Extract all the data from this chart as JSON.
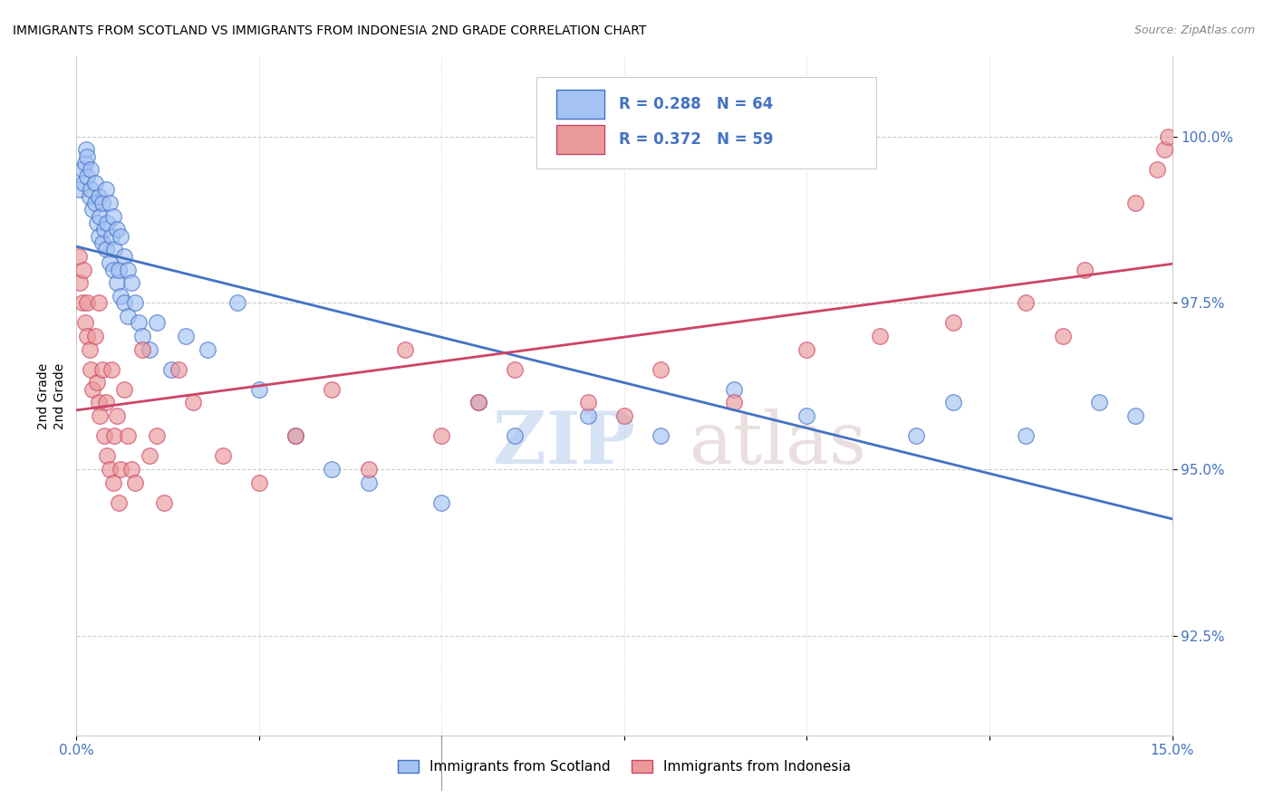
{
  "title": "IMMIGRANTS FROM SCOTLAND VS IMMIGRANTS FROM INDONESIA 2ND GRADE CORRELATION CHART",
  "source": "Source: ZipAtlas.com",
  "ylabel": "2nd Grade",
  "ytick_vals": [
    92.5,
    95.0,
    97.5,
    100.0
  ],
  "xlim": [
    0.0,
    15.0
  ],
  "ylim": [
    91.0,
    101.2
  ],
  "legend_r_scotland": "R = 0.288",
  "legend_n_scotland": "N = 64",
  "legend_r_indonesia": "R = 0.372",
  "legend_n_indonesia": "N = 59",
  "color_scotland": "#a4c2f4",
  "color_indonesia": "#ea9999",
  "color_trendline_scotland": "#4472c4",
  "color_trendline_indonesia": "#cc4466",
  "watermark_zip": "ZIP",
  "watermark_atlas": "atlas",
  "scotland_x": [
    0.05,
    0.08,
    0.1,
    0.12,
    0.13,
    0.15,
    0.15,
    0.18,
    0.2,
    0.2,
    0.22,
    0.25,
    0.25,
    0.28,
    0.3,
    0.3,
    0.32,
    0.35,
    0.35,
    0.38,
    0.4,
    0.4,
    0.42,
    0.45,
    0.45,
    0.48,
    0.5,
    0.5,
    0.52,
    0.55,
    0.55,
    0.58,
    0.6,
    0.6,
    0.65,
    0.65,
    0.7,
    0.7,
    0.75,
    0.8,
    0.85,
    0.9,
    1.0,
    1.1,
    1.3,
    1.5,
    1.8,
    2.2,
    2.5,
    3.0,
    3.5,
    4.0,
    5.0,
    5.5,
    6.0,
    7.0,
    8.0,
    9.0,
    10.0,
    11.5,
    12.0,
    13.0,
    14.0,
    14.5
  ],
  "scotland_y": [
    99.2,
    99.5,
    99.3,
    99.6,
    99.8,
    99.4,
    99.7,
    99.1,
    99.5,
    99.2,
    98.9,
    99.3,
    99.0,
    98.7,
    99.1,
    98.5,
    98.8,
    99.0,
    98.4,
    98.6,
    99.2,
    98.3,
    98.7,
    99.0,
    98.1,
    98.5,
    98.8,
    98.0,
    98.3,
    98.6,
    97.8,
    98.0,
    98.5,
    97.6,
    98.2,
    97.5,
    98.0,
    97.3,
    97.8,
    97.5,
    97.2,
    97.0,
    96.8,
    97.2,
    96.5,
    97.0,
    96.8,
    97.5,
    96.2,
    95.5,
    95.0,
    94.8,
    94.5,
    96.0,
    95.5,
    95.8,
    95.5,
    96.2,
    95.8,
    95.5,
    96.0,
    95.5,
    96.0,
    95.8
  ],
  "indonesia_x": [
    0.03,
    0.05,
    0.08,
    0.1,
    0.12,
    0.15,
    0.15,
    0.18,
    0.2,
    0.22,
    0.25,
    0.28,
    0.3,
    0.3,
    0.32,
    0.35,
    0.38,
    0.4,
    0.42,
    0.45,
    0.48,
    0.5,
    0.52,
    0.55,
    0.58,
    0.6,
    0.65,
    0.7,
    0.75,
    0.8,
    0.9,
    1.0,
    1.1,
    1.2,
    1.4,
    1.6,
    2.0,
    2.5,
    3.0,
    3.5,
    4.0,
    4.5,
    5.0,
    5.5,
    6.0,
    7.0,
    7.5,
    8.0,
    9.0,
    10.0,
    11.0,
    12.0,
    13.0,
    13.5,
    13.8,
    14.5,
    14.8,
    14.9,
    14.95
  ],
  "indonesia_y": [
    98.2,
    97.8,
    97.5,
    98.0,
    97.2,
    97.5,
    97.0,
    96.8,
    96.5,
    96.2,
    97.0,
    96.3,
    96.0,
    97.5,
    95.8,
    96.5,
    95.5,
    96.0,
    95.2,
    95.0,
    96.5,
    94.8,
    95.5,
    95.8,
    94.5,
    95.0,
    96.2,
    95.5,
    95.0,
    94.8,
    96.8,
    95.2,
    95.5,
    94.5,
    96.5,
    96.0,
    95.2,
    94.8,
    95.5,
    96.2,
    95.0,
    96.8,
    95.5,
    96.0,
    96.5,
    96.0,
    95.8,
    96.5,
    96.0,
    96.8,
    97.0,
    97.2,
    97.5,
    97.0,
    98.0,
    99.0,
    99.5,
    99.8,
    100.0
  ]
}
